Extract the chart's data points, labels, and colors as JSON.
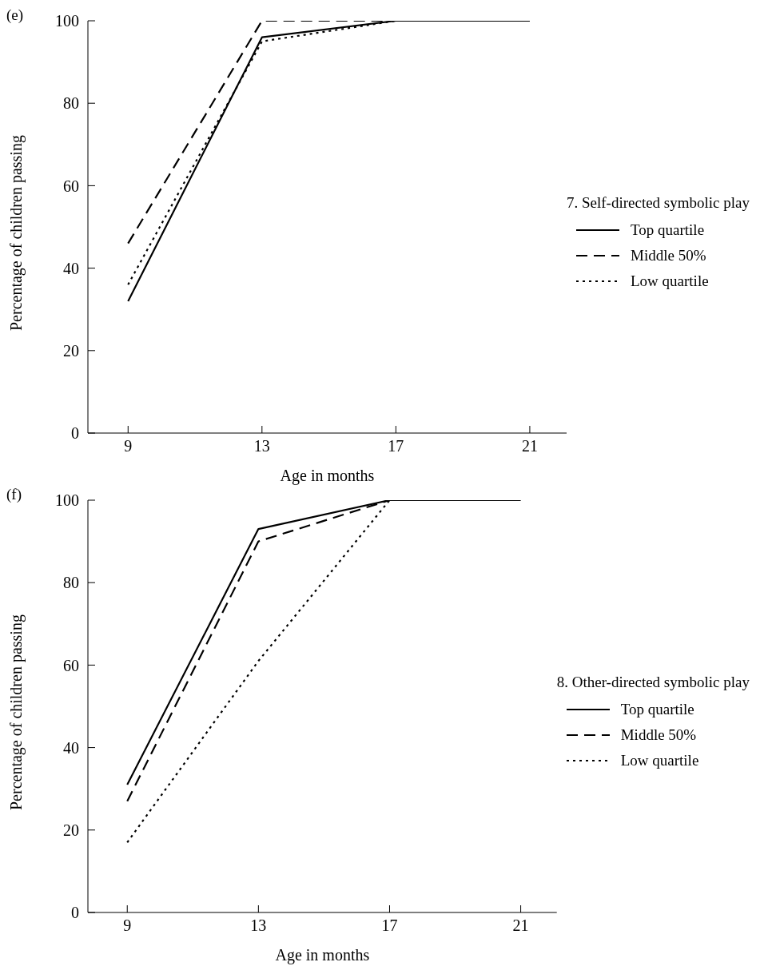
{
  "chart_data": [
    {
      "type": "line",
      "title": "(e)",
      "xlabel": "Age in months",
      "ylabel": "Percentage of children passing",
      "legend_title": "7. Self-directed symbolic play",
      "x": [
        9,
        13,
        17,
        21
      ],
      "xlim": [
        7.8,
        22.1
      ],
      "xticks": [
        9,
        13,
        17,
        21
      ],
      "ylim": [
        0,
        100
      ],
      "yticks": [
        0,
        20,
        40,
        60,
        80,
        100
      ],
      "grid": false,
      "legend": "right",
      "marker": "none",
      "series": [
        {
          "name": "Top quartile",
          "color": "#000000",
          "line_style": "solid",
          "values": [
            32,
            96,
            100,
            100
          ]
        },
        {
          "name": "Middle 50%",
          "color": "#000000",
          "line_style": "dashed",
          "values": [
            46,
            100,
            100,
            100
          ]
        },
        {
          "name": "Low quartile",
          "color": "#000000",
          "line_style": "dotted",
          "values": [
            36,
            95,
            100,
            100
          ]
        }
      ]
    },
    {
      "type": "line",
      "title": "(f)",
      "xlabel": "Age in months",
      "ylabel": "Percentage of children passing",
      "legend_title": "8. Other-directed symbolic play",
      "x": [
        9,
        13,
        17,
        21
      ],
      "xlim": [
        7.8,
        22.1
      ],
      "xticks": [
        9,
        13,
        17,
        21
      ],
      "ylim": [
        0,
        100
      ],
      "yticks": [
        0,
        20,
        40,
        60,
        80,
        100
      ],
      "grid": false,
      "legend": "right",
      "marker": "none",
      "series": [
        {
          "name": "Top quartile",
          "color": "#000000",
          "line_style": "solid",
          "values": [
            31,
            93,
            100,
            100
          ]
        },
        {
          "name": "Middle 50%",
          "color": "#000000",
          "line_style": "dashed",
          "values": [
            27,
            90,
            100,
            100
          ]
        },
        {
          "name": "Low quartile",
          "color": "#000000",
          "line_style": "dotted",
          "values": [
            17,
            61,
            100,
            100
          ]
        }
      ]
    }
  ]
}
